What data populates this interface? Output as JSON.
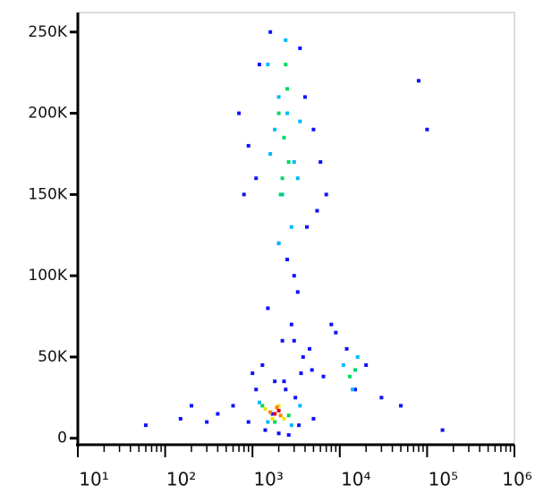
{
  "chart_data": {
    "type": "scatter",
    "xscale": "log",
    "xlim": [
      10,
      1000000
    ],
    "ylim": [
      -4000,
      262000
    ],
    "xticks": [
      {
        "value": 10,
        "label": "10¹"
      },
      {
        "value": 100,
        "label": "10²"
      },
      {
        "value": 1000,
        "label": "10³"
      },
      {
        "value": 10000,
        "label": "10⁴"
      },
      {
        "value": 100000,
        "label": "10⁵"
      },
      {
        "value": 1000000,
        "label": "10⁶"
      }
    ],
    "yticks": [
      0,
      {
        "value": 50000,
        "label": "50K"
      },
      {
        "value": 100000,
        "label": "100K"
      },
      {
        "value": 150000,
        "label": "150K"
      },
      {
        "value": 200000,
        "label": "200K"
      },
      {
        "value": 250000,
        "label": "250K"
      }
    ],
    "series": [
      {
        "color": "#1010ff",
        "x": [
          700,
          900,
          1200,
          1600,
          2000,
          2500,
          3000,
          3500,
          4000,
          5000,
          6000,
          800,
          1100,
          1500,
          2200,
          2800,
          3300,
          4200,
          5500,
          7000,
          1000,
          1300,
          1800,
          2400,
          3100,
          3800,
          4500,
          900,
          1400,
          2000,
          2600,
          3400,
          5000,
          600,
          1700,
          3000,
          8000,
          9000,
          12000,
          20000,
          15000,
          30000,
          50000,
          80000,
          100000,
          150000,
          400,
          300,
          200,
          150,
          60,
          1100,
          2300,
          3600,
          4800,
          6500
        ],
        "y": [
          200000,
          180000,
          230000,
          250000,
          120000,
          110000,
          100000,
          240000,
          210000,
          190000,
          170000,
          150000,
          160000,
          80000,
          60000,
          70000,
          90000,
          130000,
          140000,
          150000,
          40000,
          45000,
          35000,
          30000,
          25000,
          50000,
          55000,
          10000,
          5000,
          3000,
          2000,
          8000,
          12000,
          20000,
          15000,
          60000,
          70000,
          65000,
          55000,
          45000,
          30000,
          25000,
          20000,
          220000,
          190000,
          5000,
          15000,
          10000,
          20000,
          12000,
          8000,
          30000,
          35000,
          40000,
          42000,
          38000
        ]
      },
      {
        "color": "#00b8ff",
        "x": [
          1500,
          2000,
          2500,
          3000,
          1800,
          2200,
          2800,
          3300,
          1600,
          2400,
          3500,
          2000,
          1200,
          1500,
          2800,
          3500,
          11000,
          14000,
          16000
        ],
        "y": [
          230000,
          210000,
          200000,
          170000,
          190000,
          150000,
          130000,
          160000,
          175000,
          245000,
          195000,
          120000,
          22000,
          10000,
          8000,
          20000,
          45000,
          30000,
          50000
        ]
      },
      {
        "color": "#00d860",
        "x": [
          2000,
          2300,
          2600,
          2200,
          2500,
          2100,
          2400,
          1300,
          2600,
          1800,
          13000,
          15000
        ],
        "y": [
          200000,
          185000,
          170000,
          160000,
          215000,
          150000,
          230000,
          20000,
          14000,
          10000,
          38000,
          42000
        ]
      },
      {
        "color": "#e8e800",
        "x": [
          1400,
          2300,
          1700,
          2000
        ],
        "y": [
          18000,
          12000,
          12000,
          20000
        ]
      },
      {
        "color": "#ff8000",
        "x": [
          1600,
          2100,
          1900
        ],
        "y": [
          16000,
          14000,
          19000
        ]
      },
      {
        "color": "#e00000",
        "x": [
          1800,
          2000
        ],
        "y": [
          15000,
          17000
        ]
      }
    ]
  }
}
